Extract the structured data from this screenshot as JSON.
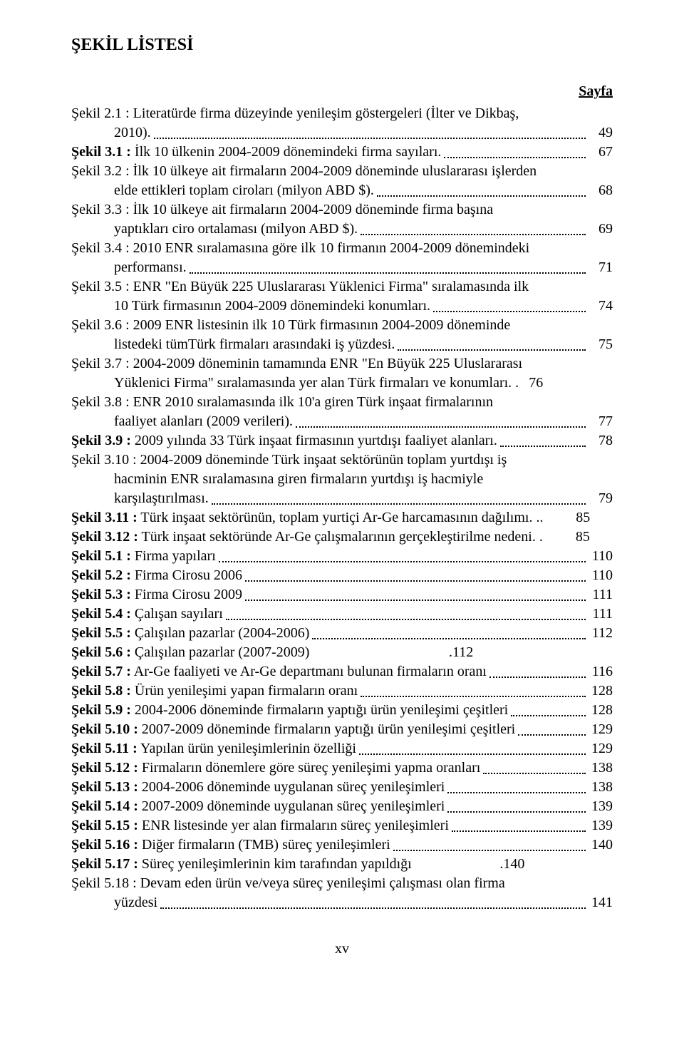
{
  "heading": "ŞEKİL LİSTESİ",
  "sayfa_label": "Sayfa",
  "footer": "xv",
  "entries": [
    {
      "prefix": "Şekil 2.1 :",
      "line1": " Literatürde firma düzeyinde yenileşim göstergeleri (İlter ve Dikbaş,",
      "line2": "2010). ",
      "page": "49"
    },
    {
      "prefix": "Şekil 3.1 :",
      "line1": " İlk 10 ülkenin 2004-2009 dönemindeki firma sayıları. ",
      "page": "67"
    },
    {
      "prefix": "Şekil 3.2 :",
      "line1": " İlk 10 ülkeye ait firmaların 2004-2009 döneminde uluslararası işlerden",
      "line2": "elde ettikleri toplam ciroları (milyon ABD $). ",
      "page": "68"
    },
    {
      "prefix": "Şekil 3.3 :",
      "line1": " İlk 10 ülkeye ait firmaların 2004-2009 döneminde firma başına",
      "line2": "yaptıkları ciro ortalaması (milyon ABD $). ",
      "page": "69"
    },
    {
      "prefix": "Şekil 3.4 :",
      "line1": " 2010 ENR sıralamasına göre ilk 10 firmanın 2004-2009 dönemindeki",
      "line2": "performansı. ",
      "page": "71"
    },
    {
      "prefix": "Şekil 3.5 :",
      "line1": " ENR \"En Büyük 225 Uluslararası Yüklenici Firma\" sıralamasında ilk",
      "line2": "10 Türk firmasının 2004-2009 dönemindeki konumları. ",
      "page": "74"
    },
    {
      "prefix": "Şekil 3.6 :",
      "line1": " 2009 ENR listesinin ilk 10 Türk firmasının 2004-2009 döneminde",
      "line2": "listedeki tümTürk firmaları arasındaki iş yüzdesi. ",
      "page": "75"
    },
    {
      "prefix": "Şekil 3.7 :",
      "line1": " 2004-2009 döneminin tamamında ENR \"En Büyük 225 Uluslararası",
      "line2": "Yüklenici Firma\" sıralamasında yer alan Türk firmaları ve konumları. .",
      "page": "76",
      "nodots": true
    },
    {
      "prefix": "Şekil 3.8 :",
      "line1": " ENR 2010 sıralamasında ilk 10'a giren Türk inşaat firmalarının",
      "line2": "faaliyet alanları (2009 verileri). ",
      "page": "77"
    },
    {
      "prefix": "Şekil 3.9 :",
      "line1": " 2009 yılında 33 Türk inşaat firmasının yurtdışı faaliyet alanları. ",
      "page": "78"
    },
    {
      "prefix": "Şekil 3.10 :",
      "line1": " 2004-2009 döneminde Türk inşaat sektörünün toplam yurtdışı iş",
      "line2": "hacminin ENR sıralamasına giren firmaların yurtdışı iş hacmiyle",
      "line3": "karşılaştırılması. ",
      "page": "79"
    },
    {
      "prefix": "Şekil 3.11 :",
      "line1": " Türk inşaat sektörünün, toplam yurtiçi Ar-Ge harcamasının dağılımı. ..",
      "page": "85",
      "nodots": true
    },
    {
      "prefix": "Şekil 3.12 :",
      "line1": " Türk inşaat sektöründe Ar-Ge çalışmalarının gerçekleştirilme nedeni. .",
      "page": "85",
      "nodots": true
    },
    {
      "prefix": "Şekil 5.1 :",
      "line1": " Firma yapıları ",
      "page": "110"
    },
    {
      "prefix": "Şekil 5.2 :",
      "line1": " Firma Cirosu 2006 ",
      "page": "110"
    },
    {
      "prefix": "Şekil 5.3 :",
      "line1": " Firma Cirosu 2009 ",
      "page": "111"
    },
    {
      "prefix": "Şekil 5.4 :",
      "line1": " Çalışan sayıları ",
      "page": "111"
    },
    {
      "prefix": "Şekil 5.5 :",
      "line1": " Çalışılan pazarlar (2004-2006) ",
      "page": "112"
    },
    {
      "prefix": "Şekil 5.6 :",
      "line1": " Çalışılan pazarlar (2007-2009) ",
      "page": ".112",
      "nodots": true
    },
    {
      "prefix": "Şekil 5.7 :",
      "line1": " Ar-Ge faaliyeti ve Ar-Ge departmanı bulunan firmaların oranı ",
      "page": "116"
    },
    {
      "prefix": "Şekil 5.8 :",
      "line1": " Ürün yenileşimi yapan firmaların oranı ",
      "page": "128"
    },
    {
      "prefix": "Şekil 5.9 :",
      "line1": " 2004-2006 döneminde firmaların yaptığı ürün yenileşimi çeşitleri ",
      "page": "128"
    },
    {
      "prefix": "Şekil 5.10 :",
      "line1": " 2007-2009 döneminde firmaların yaptığı ürün yenileşimi çeşitleri ",
      "page": "129"
    },
    {
      "prefix": "Şekil 5.11 :",
      "line1": " Yapılan ürün yenileşimlerinin özelliği ",
      "page": "129"
    },
    {
      "prefix": "Şekil 5.12 :",
      "line1": " Firmaların dönemlere göre süreç yenileşimi yapma oranları ",
      "page": "138"
    },
    {
      "prefix": "Şekil 5.13 :",
      "line1": " 2004-2006 döneminde uygulanan süreç yenileşimleri ",
      "page": "138"
    },
    {
      "prefix": "Şekil 5.14 :",
      "line1": " 2007-2009 döneminde uygulanan süreç yenileşimleri ",
      "page": "139"
    },
    {
      "prefix": "Şekil 5.15 :",
      "line1": " ENR listesinde yer alan firmaların süreç yenileşimleri ",
      "page": "139"
    },
    {
      "prefix": "Şekil 5.16 :",
      "line1": " Diğer firmaların (TMB) süreç yenileşimleri ",
      "page": "140"
    },
    {
      "prefix": "Şekil 5.17 :",
      "line1": " Süreç yenileşimlerinin kim tarafından yapıldığı ",
      "page": ".140",
      "nodots": true
    },
    {
      "prefix": "Şekil 5.18 :",
      "line1": " Devam eden ürün ve/veya süreç yenileşimi çalışması olan firma",
      "line2": "yüzdesi ",
      "page": "141"
    }
  ]
}
